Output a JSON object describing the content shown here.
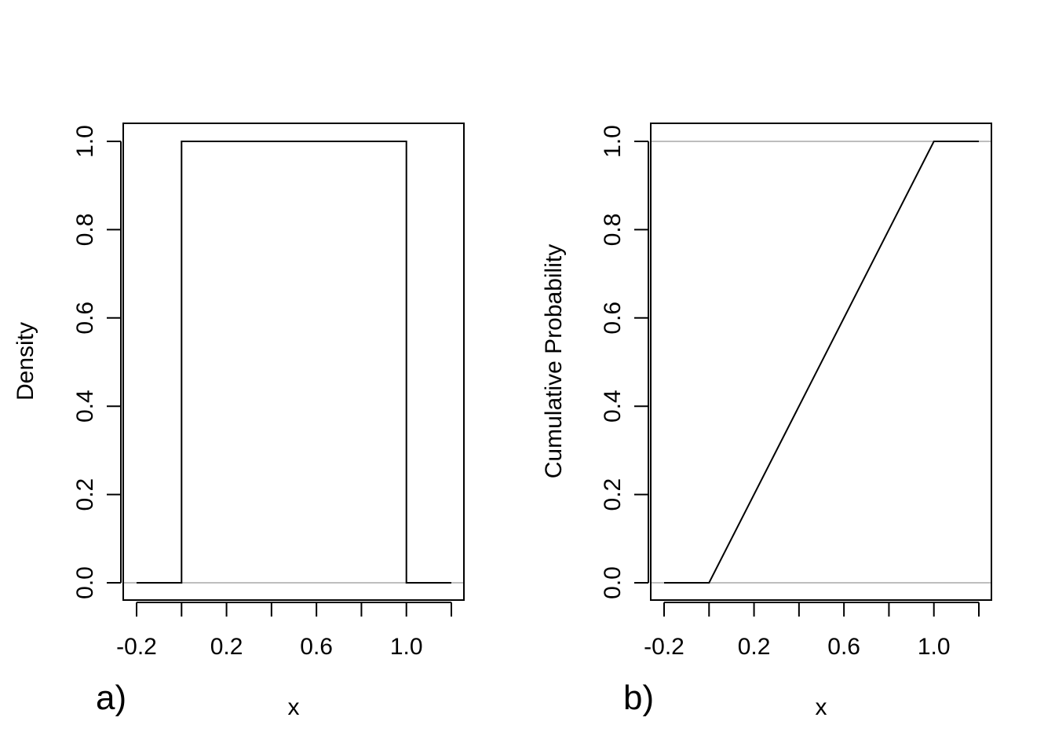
{
  "chart_data": [
    {
      "panel_label": "a)",
      "type": "line",
      "title": "",
      "xlabel": "x",
      "ylabel": "Density",
      "xlim": [
        -0.2,
        1.2
      ],
      "ylim": [
        0,
        1
      ],
      "x_ticks": [
        -0.2,
        0,
        0.2,
        0.4,
        0.6,
        0.8,
        1.0,
        1.2
      ],
      "x_tick_labels": [
        "-0.2",
        "",
        "0.2",
        "",
        "0.6",
        "",
        "1.0",
        ""
      ],
      "y_ticks": [
        0,
        0.2,
        0.4,
        0.6,
        0.8,
        1.0
      ],
      "y_tick_labels": [
        "0.0",
        "0.2",
        "0.4",
        "0.6",
        "0.8",
        "1.0"
      ],
      "reference_lines": [
        0
      ],
      "grid": false,
      "series": [
        {
          "x": [
            -0.2,
            0,
            0,
            1,
            1,
            1.2
          ],
          "y": [
            0,
            0,
            1,
            1,
            0,
            0
          ]
        }
      ],
      "colors": {
        "line": "#000000",
        "reference_line": "#bebebe"
      }
    },
    {
      "panel_label": "b)",
      "type": "line",
      "title": "",
      "xlabel": "x",
      "ylabel": "Cumulative Probability",
      "xlim": [
        -0.2,
        1.2
      ],
      "ylim": [
        0,
        1
      ],
      "x_ticks": [
        -0.2,
        0,
        0.2,
        0.4,
        0.6,
        0.8,
        1.0,
        1.2
      ],
      "x_tick_labels": [
        "-0.2",
        "",
        "0.2",
        "",
        "0.6",
        "",
        "1.0",
        ""
      ],
      "y_ticks": [
        0,
        0.2,
        0.4,
        0.6,
        0.8,
        1.0
      ],
      "y_tick_labels": [
        "0.0",
        "0.2",
        "0.4",
        "0.6",
        "0.8",
        "1.0"
      ],
      "reference_lines": [
        0,
        1
      ],
      "grid": false,
      "series": [
        {
          "x": [
            -0.2,
            0,
            1,
            1.2
          ],
          "y": [
            0,
            0,
            1,
            1
          ]
        }
      ],
      "colors": {
        "line": "#000000",
        "reference_line": "#bebebe"
      }
    }
  ]
}
